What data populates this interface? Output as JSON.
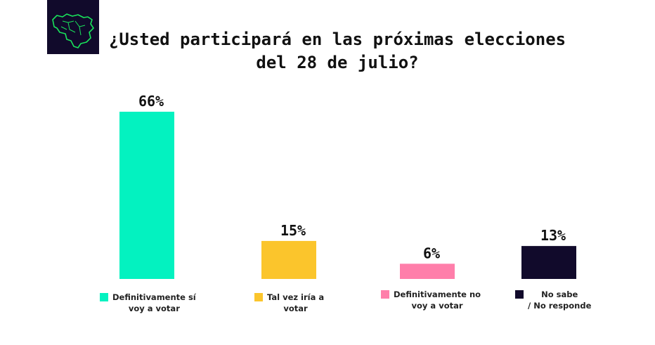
{
  "title": "¿Usted participará en las próximas elecciones del 28 de julio?",
  "logo_icon": "venezuela-map-icon",
  "colors": {
    "logo_bg": "#110a2b",
    "logo_stroke": "#19e35b"
  },
  "chart_data": {
    "type": "bar",
    "title": "¿Usted participará en las próximas elecciones del 28 de julio?",
    "categories": [
      "Definitivamente sí voy a votar",
      "Tal vez iría a votar",
      "Definitivamente no voy a votar",
      "No sabe / No responde"
    ],
    "values": [
      66,
      15,
      6,
      13
    ],
    "value_labels": [
      "66%",
      "15%",
      "6%",
      "13%"
    ],
    "colors": [
      "#03f2c0",
      "#fbc52c",
      "#ff7eaa",
      "#110a2b"
    ],
    "legend": [
      {
        "label": "Definitivamente sí\nvoy a votar",
        "color": "#03f2c0"
      },
      {
        "label": "Tal vez iría a\nvotar",
        "color": "#fbc52c"
      },
      {
        "label": "Definitivamente no\nvoy a votar",
        "color": "#ff7eaa"
      },
      {
        "label": "No sabe\n/ No responde",
        "color": "#110a2b"
      }
    ],
    "unit": "%",
    "grid": false,
    "legend_position": "bottom"
  }
}
